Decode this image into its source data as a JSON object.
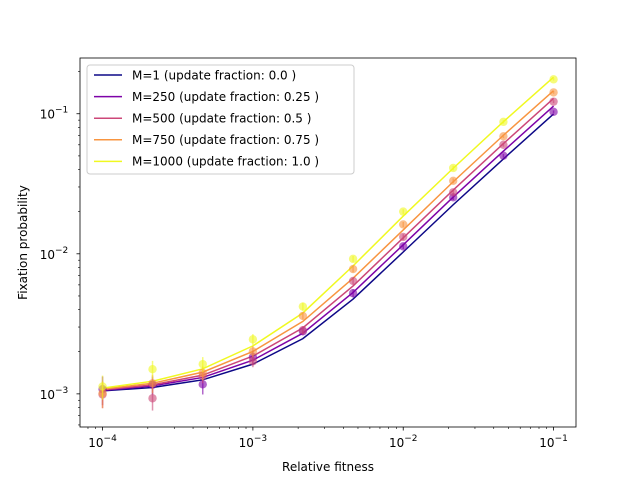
{
  "chart_data": {
    "type": "line",
    "xlabel": "Relative fitness",
    "ylabel": "Fixation probability",
    "xscale": "log",
    "yscale": "log",
    "xlim": [
      7.08e-05,
      0.141
    ],
    "ylim": [
      0.00058,
      0.25
    ],
    "grid": false,
    "legend_position": "top-left",
    "x_ticks": [
      {
        "value": 0.0001,
        "base": "10",
        "exp": "−4"
      },
      {
        "value": 0.001,
        "base": "10",
        "exp": "−3"
      },
      {
        "value": 0.01,
        "base": "10",
        "exp": "−2"
      },
      {
        "value": 0.1,
        "base": "10",
        "exp": "−1"
      }
    ],
    "y_ticks": [
      {
        "value": 0.001,
        "base": "10",
        "exp": "−3"
      },
      {
        "value": 0.01,
        "base": "10",
        "exp": "−2"
      },
      {
        "value": 0.1,
        "base": "10",
        "exp": "−1"
      }
    ],
    "x": [
      0.0001,
      0.000215,
      0.000464,
      0.001,
      0.00215,
      0.00464,
      0.01,
      0.0215,
      0.0464,
      0.1
    ],
    "series": [
      {
        "name": "M=1 (update fraction: 0.0 )",
        "color": "#0d0887",
        "line": [
          0.00105,
          0.00111,
          0.00126,
          0.00163,
          0.00248,
          0.00475,
          0.0103,
          0.0224,
          0.0476,
          0.0997
        ],
        "points": [],
        "err": []
      },
      {
        "name": "M=250 (update fraction: 0.25 )",
        "color": "#7e03a8",
        "line": [
          0.00106,
          0.00114,
          0.00131,
          0.00174,
          0.00271,
          0.0053,
          0.0116,
          0.0254,
          0.0541,
          0.1135
        ],
        "points": [
          0.00108,
          0.00116,
          0.00117,
          0.00183,
          0.0028,
          0.00523,
          0.0113,
          0.0253,
          0.0502,
          0.1032
        ],
        "err": [
          0.00025,
          0.00017,
          0.00018,
          0.0002,
          0.00018,
          0.00035,
          0.0005,
          0.0011,
          0.0015,
          0.0025
        ]
      },
      {
        "name": "M=500 (update fraction: 0.5 )",
        "color": "#cc4778",
        "line": [
          0.00107,
          0.00116,
          0.00136,
          0.00186,
          0.00296,
          0.0059,
          0.013,
          0.0285,
          0.0612,
          0.1285
        ],
        "points": [
          0.00099,
          0.00093,
          0.00134,
          0.00171,
          0.00285,
          0.0064,
          0.0132,
          0.0275,
          0.06,
          0.122
        ],
        "err": [
          0.0002,
          0.00017,
          0.00015,
          0.00016,
          0.0002,
          0.00035,
          0.0006,
          0.0012,
          0.0018,
          0.003
        ]
      },
      {
        "name": "M=750 (update fraction: 0.75 )",
        "color": "#f89540",
        "line": [
          0.00108,
          0.00119,
          0.00143,
          0.00201,
          0.00329,
          0.0067,
          0.0148,
          0.0327,
          0.0702,
          0.146
        ],
        "points": [
          0.00101,
          0.00119,
          0.00141,
          0.00201,
          0.0036,
          0.00778,
          0.0162,
          0.0332,
          0.069,
          0.142
        ],
        "err": [
          0.00022,
          0.00018,
          0.00016,
          0.00018,
          0.0002,
          0.0004,
          0.0007,
          0.0013,
          0.002,
          0.0032
        ]
      },
      {
        "name": "M=1000 (update fraction: 1.0 )",
        "color": "#f0f921",
        "line": [
          0.0011,
          0.00123,
          0.00151,
          0.0022,
          0.00378,
          0.0082,
          0.0186,
          0.0408,
          0.0878,
          0.1825
        ],
        "points": [
          0.00113,
          0.0015,
          0.00163,
          0.00245,
          0.0042,
          0.0092,
          0.02,
          0.041,
          0.0875,
          0.176
        ],
        "err": [
          0.00022,
          0.00022,
          0.0002,
          0.00022,
          0.00028,
          0.00045,
          0.0008,
          0.0016,
          0.0025,
          0.0035
        ]
      }
    ]
  }
}
